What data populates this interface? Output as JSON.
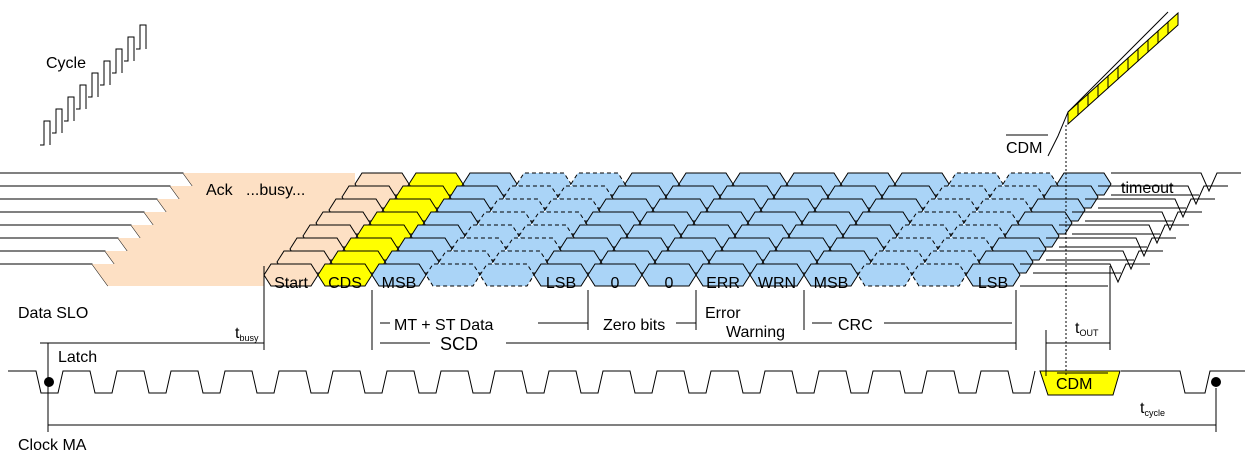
{
  "labels": {
    "cycle": "Cycle",
    "data_slo": "Data SLO",
    "clock_ma": "Clock MA",
    "latch": "Latch",
    "t_busy_main": "t",
    "t_busy_sub": "busy",
    "t_out_main": "t",
    "t_out_sub": "OUT",
    "t_cycle_main": "t",
    "t_cycle_sub": "cycle",
    "ack": "Ack",
    "busy": "...busy...",
    "timeout": "timeout",
    "cdm_top": "CDM",
    "cdm_clock": "CDM",
    "scd": "SCD"
  },
  "fields": [
    "Start",
    "CDS",
    "MSB",
    "",
    "",
    "LSB",
    "0",
    "0",
    "ERR",
    "WRN",
    "MSB",
    "",
    "",
    "LSB"
  ],
  "field_colors": {
    "Start": "#fde0c4",
    "CDS": "#ffff00",
    "data": "#aad4f7",
    "cdm": "#ffff00",
    "stroke": "#000000"
  },
  "groups": [
    "MT + ST Data",
    "Zero bits",
    "Error",
    "Warning",
    "CRC"
  ]
}
